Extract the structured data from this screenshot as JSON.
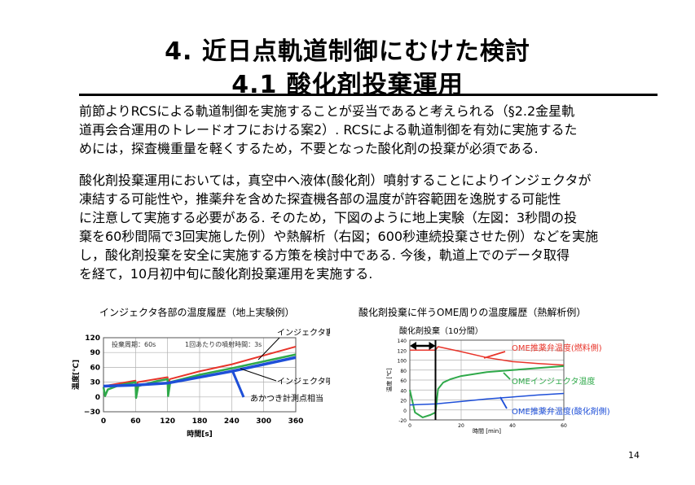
{
  "title": {
    "line1": "4.  近日点軌道制御にむけた検討",
    "line2": "4.1  酸化剤投棄運用"
  },
  "paragraph1": [
    "前節よりRCSによる軌道制御を実施することが妥当であると考えられる（§2.2金星軌",
    "道再会合運用のトレードオフにおける案2）. RCSによる軌道制御を有効に実施するた",
    "めには，探査機重量を軽くするため，不要となった酸化剤の投棄が必須である."
  ],
  "paragraph2": [
    "酸化剤投棄運用においては，真空中へ液体(酸化剤）噴射することによりインジェクタが",
    "凍結する可能性や，推薬弁を含めた探査機各部の温度が許容範囲を逸脱する可能性",
    "に注意して実施する必要がある. そのため，下図のように地上実験（左図：3秒間の投",
    "棄を60秒間隔で3回実施した例）や熱解析（右図；600秒連続投棄させた例）などを実施",
    "し，酸化剤投棄を安全に実施する方策を検討中である. 今後，軌道上でのデータ取得",
    "を経て，10月初中旬に酸化剤投棄運用を実施する."
  ],
  "left_caption": "インジェクタ各部の温度履歴（地上実験例）",
  "right_caption": "酸化剤投棄に伴うOME周りの温度履歴（熱解析例）",
  "page_number": "14",
  "chart_data": [
    {
      "type": "line",
      "title": "",
      "xlabel": "時間[s]",
      "ylabel": "温度[℃]",
      "xlim": [
        0,
        360
      ],
      "ylim": [
        -30,
        120
      ],
      "x_ticks": [
        "0",
        "60",
        "120",
        "180",
        "240",
        "300",
        "360"
      ],
      "y_ticks": [
        "120",
        "90",
        "60",
        "30",
        "0",
        "−30"
      ],
      "inset_texts": [
        "投棄周期：60s",
        "1回あたりの噴射時間：3s"
      ],
      "annotations": [
        "インジェクタ裏面",
        "インジェクタ噴射面",
        "あかつき計測点相当"
      ],
      "colors": {
        "red": "#e8342a",
        "green": "#2fa94a",
        "blue": "#1e4fd8"
      },
      "series": [
        {
          "color": "red",
          "x": [
            0,
            60,
            61,
            64,
            120,
            121,
            124,
            180,
            240,
            300,
            360
          ],
          "y": [
            22,
            33,
            14,
            30,
            40,
            20,
            36,
            52,
            66,
            84,
            102
          ]
        },
        {
          "color": "green",
          "x": [
            0,
            3,
            8,
            30,
            60,
            61,
            65,
            100,
            120,
            121,
            125,
            180,
            240,
            300,
            360
          ],
          "y": [
            20,
            2,
            15,
            24,
            30,
            -2,
            22,
            32,
            36,
            2,
            30,
            45,
            58,
            72,
            86
          ]
        },
        {
          "color": "blue",
          "x": [
            0,
            60,
            120,
            180,
            240,
            300,
            360
          ],
          "y": [
            22,
            24,
            28,
            40,
            52,
            66,
            80
          ]
        }
      ]
    },
    {
      "type": "line",
      "title": "",
      "xlabel": "時間 [min]",
      "ylabel": "温度 [℃]",
      "xlim": [
        0,
        60
      ],
      "ylim": [
        -20,
        140
      ],
      "x_ticks": [
        "0",
        "20",
        "40",
        "60"
      ],
      "y_ticks": [
        "140",
        "120",
        "100",
        "80",
        "60",
        "40",
        "20",
        "0",
        "-20"
      ],
      "span_label": "酸化剤投棄（10分間）",
      "span": [
        0,
        10
      ],
      "colors": {
        "red": "#e8342a",
        "green": "#2fa94a",
        "blue": "#1e4fd8"
      },
      "series": [
        {
          "name": "OME推薬弁温度(燃料側)",
          "color": "red",
          "x": [
            0,
            5,
            10,
            11,
            20,
            30,
            40,
            50,
            60
          ],
          "y": [
            120,
            120,
            120,
            127,
            117,
            105,
            97,
            93,
            90
          ]
        },
        {
          "name": "OMEインジェクタ温度",
          "color": "green",
          "x": [
            0,
            2,
            5,
            8,
            10,
            11,
            13,
            16,
            20,
            30,
            40,
            50,
            60
          ],
          "y": [
            40,
            -5,
            -15,
            -10,
            -5,
            42,
            55,
            62,
            68,
            76,
            80,
            84,
            88
          ]
        },
        {
          "name": "OME推薬弁温度(酸化剤側)",
          "color": "blue",
          "x": [
            0,
            10,
            20,
            30,
            40,
            50,
            60
          ],
          "y": [
            10,
            12,
            17,
            22,
            26,
            30,
            33
          ]
        }
      ]
    }
  ]
}
